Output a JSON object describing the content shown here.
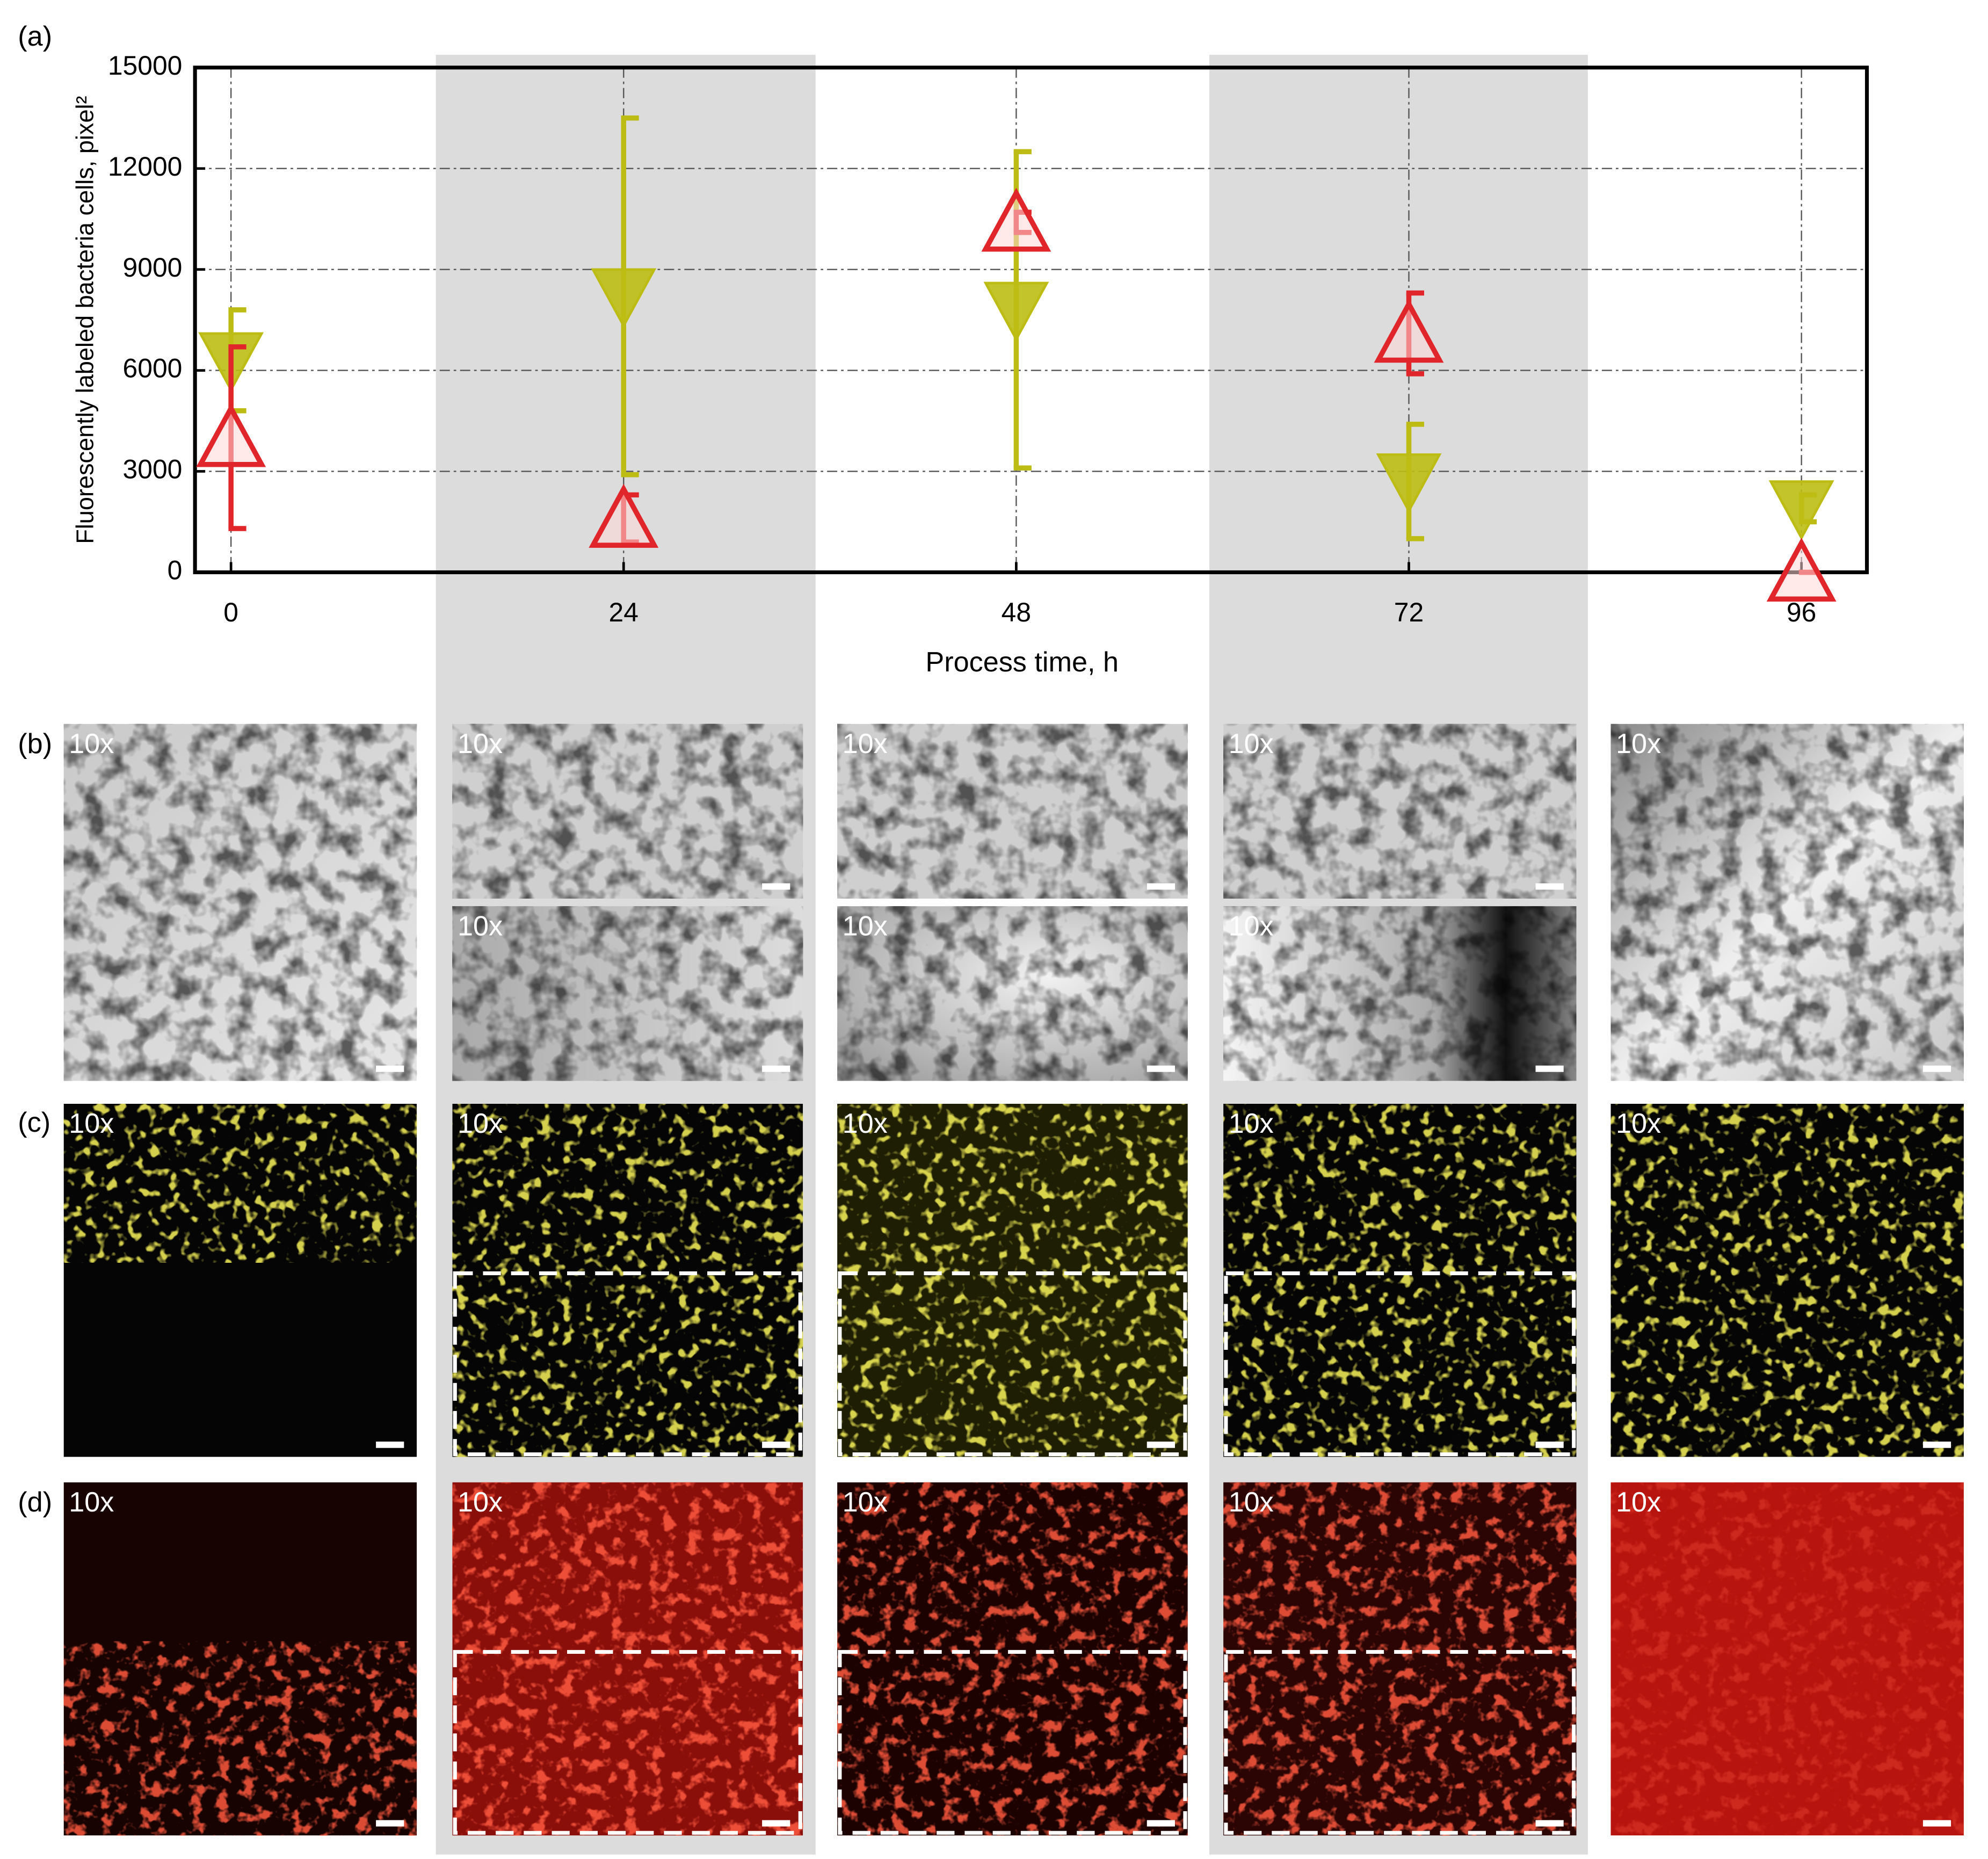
{
  "chart_data": {
    "type": "scatter",
    "ylabel": "Fluorescently labeled bacteria cells, pixel²",
    "xlabel": "Process time, h",
    "x": [
      0,
      24,
      48,
      72,
      96
    ],
    "series": [
      {
        "color": "#bcbc14",
        "marker": "triangle-down",
        "values": [
          6300,
          8200,
          7800,
          2700,
          1900
        ],
        "errors": [
          1500,
          5300,
          4700,
          1700,
          400
        ]
      },
      {
        "color": "#e0262a",
        "marker": "triangle-up",
        "values": [
          4000,
          1600,
          10400,
          7100,
          0
        ],
        "errors": [
          2700,
          700,
          300,
          1200,
          0
        ]
      }
    ],
    "xlim": [
      -2.2,
      100
    ],
    "xticks": [
      0,
      24,
      48,
      72,
      96
    ],
    "ylim": [
      0,
      15000
    ],
    "yticks": [
      0,
      3000,
      6000,
      9000,
      12000,
      15000
    ],
    "grid": true
  },
  "panel_labels": [
    "(a)",
    "(b)",
    "(c)",
    "(d)"
  ],
  "micrographs": {
    "b": [
      "10x",
      "10x",
      "10x",
      "10x",
      "10x",
      "10x",
      "10x",
      "10x"
    ],
    "c": [
      "10x",
      "10x",
      "10x",
      "10x",
      "10x"
    ],
    "d": [
      "10x",
      "10x",
      "10x",
      "10x",
      "10x"
    ]
  }
}
